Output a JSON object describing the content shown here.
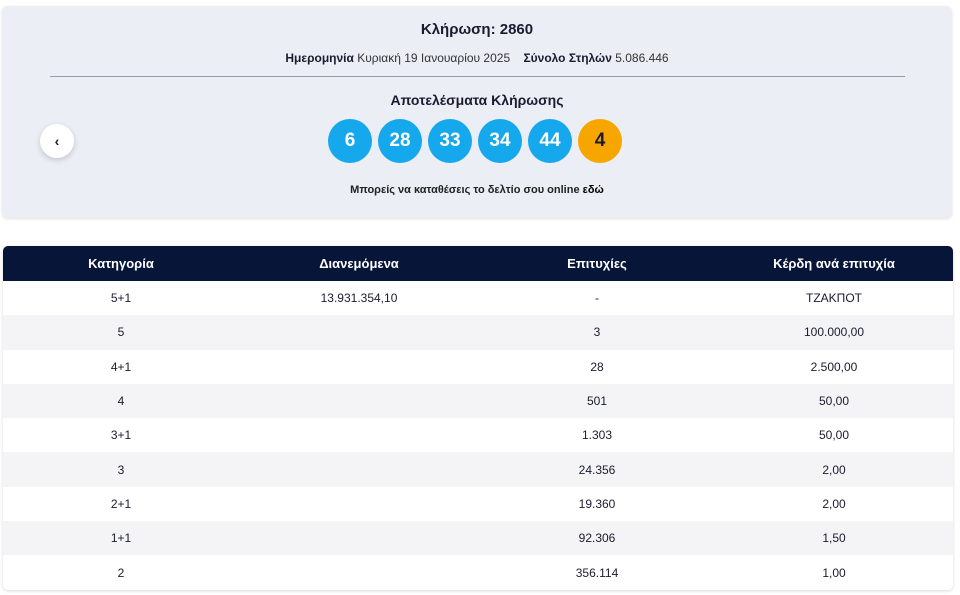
{
  "header": {
    "title": "Κλήρωση: 2860",
    "date_label": "Ημερομηνία",
    "date_value": "Κυριακή 19 Ιανουαρίου 2025",
    "columns_label": "Σύνολο Στηλών",
    "columns_value": "5.086.446"
  },
  "results": {
    "title": "Αποτελέσματα Κλήρωσης",
    "numbers": [
      6,
      28,
      33,
      34,
      44
    ],
    "bonus": 4,
    "note": "Μπορείς να καταθέσεις το δελτίο σου online",
    "note_link": "εδώ"
  },
  "table": {
    "columns": [
      "Κατηγορία",
      "Διανεμόμενα",
      "Επιτυχίες",
      "Κέρδη ανά επιτυχία"
    ],
    "rows": [
      [
        "5+1",
        "13.931.354,10",
        "-",
        "ΤΖΑΚΠΟΤ"
      ],
      [
        "5",
        null,
        "3",
        "100.000,00"
      ],
      [
        "4+1",
        null,
        "28",
        "2.500,00"
      ],
      [
        "4",
        null,
        "501",
        "50,00"
      ],
      [
        "3+1",
        null,
        "1.303",
        "50,00"
      ],
      [
        "3",
        null,
        "24.356",
        "2,00"
      ],
      [
        "2+1",
        null,
        "19.360",
        "2,00"
      ],
      [
        "1+1",
        null,
        "92.306",
        "1,50"
      ],
      [
        "2",
        null,
        "356.114",
        "1,00"
      ]
    ]
  }
}
